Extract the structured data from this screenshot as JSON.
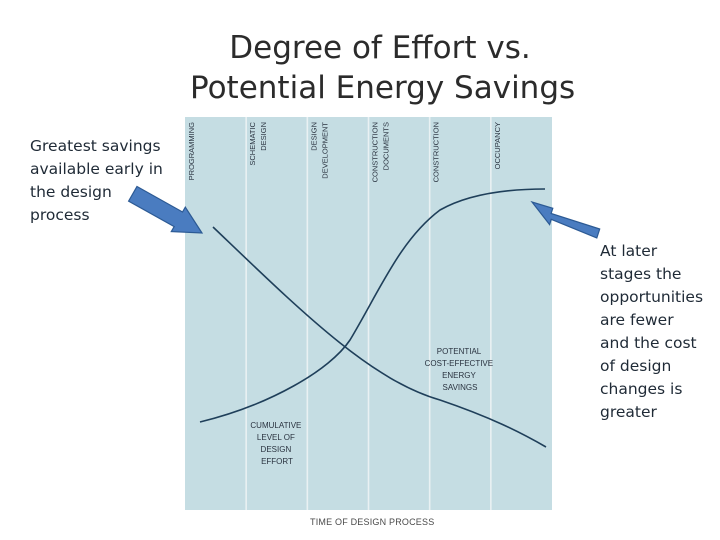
{
  "title_lines": [
    "Degree of Effort vs.",
    "Potential Energy Savings"
  ],
  "notes": {
    "left_lines": [
      "Greatest savings",
      "available early in",
      "the design",
      "process"
    ],
    "right_lines": [
      "At later",
      "stages the",
      "opportunities",
      "are fewer",
      "and the cost",
      "of design",
      "changes is",
      "greater"
    ]
  },
  "phases": [
    {
      "lines": [
        "PROGRAMMING"
      ]
    },
    {
      "lines": [
        "SCHEMATIC",
        "DESIGN"
      ]
    },
    {
      "lines": [
        "DESIGN",
        "DEVELOPMENT"
      ]
    },
    {
      "lines": [
        "CONSTRUCTION",
        "DOCUMENTS"
      ]
    },
    {
      "lines": [
        "CONSTRUCTION"
      ]
    },
    {
      "lines": [
        "OCCUPANCY"
      ]
    }
  ],
  "curve_labels": {
    "savings": [
      "POTENTIAL",
      "COST-EFFECTIVE",
      "ENERGY",
      "SAVINGS"
    ],
    "effort": [
      "CUMULATIVE",
      "LEVEL OF",
      "DESIGN",
      "EFFORT"
    ]
  },
  "x_axis_label": "TIME OF DESIGN PROCESS",
  "colors": {
    "panel": "#c5dde3",
    "divider": "#e9f1f3",
    "curve": "#1f3f5a",
    "arrow_fill": "#4a7cc0",
    "arrow_stroke": "#2c5a94",
    "text": "#1f2a36"
  }
}
